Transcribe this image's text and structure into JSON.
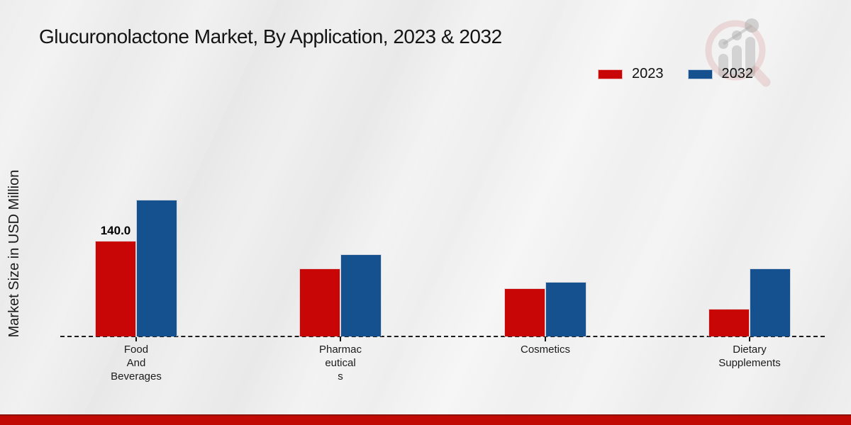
{
  "chart_data": {
    "type": "bar",
    "title": "Glucuronolactone Market, By Application, 2023 & 2032",
    "ylabel": "Market Size in USD Million",
    "categories": [
      "Food And Beverages",
      "Pharmaceuticals",
      "Cosmetics",
      "Dietary Supplements"
    ],
    "category_wrap": [
      [
        "Food",
        "And",
        "Beverages"
      ],
      [
        "Pharmac",
        "eutical",
        "s"
      ],
      [
        "Cosmetics"
      ],
      [
        "Dietary",
        "Supplements"
      ]
    ],
    "series": [
      {
        "name": "2023",
        "color": "#c90606",
        "values": [
          140.0,
          100,
          70,
          40
        ]
      },
      {
        "name": "2032",
        "color": "#15518f",
        "values": [
          200,
          120,
          80,
          100
        ]
      }
    ],
    "data_labels": [
      {
        "series_index": 0,
        "category_index": 0,
        "text": "140.0"
      }
    ],
    "ylim": [
      0,
      210
    ],
    "grid": false,
    "legend_position": "top-right",
    "baseline_style": "dashed"
  },
  "colors": {
    "series_2023": "#c90606",
    "series_2032": "#15518f",
    "bottom_strip": "#c20a04",
    "text": "#141414"
  },
  "watermark_icon": "magnifier-bar-chart-logo"
}
